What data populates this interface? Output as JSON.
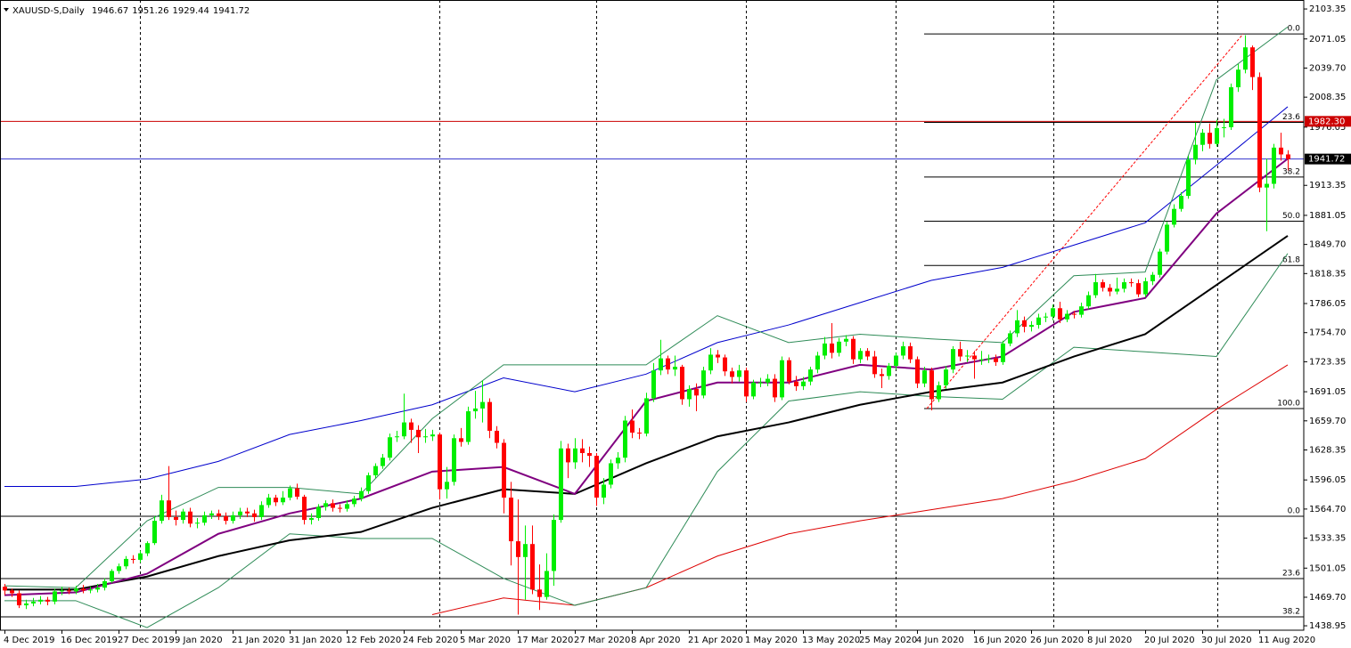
{
  "chart_data": {
    "type": "candlestick",
    "title": "XAUUSD-S,Daily",
    "up_color": "#00ee00",
    "down_color": "#ff0000",
    "ylim": [
      1434.2,
      2113.0
    ],
    "yticks": [
      2103.35,
      2071.05,
      {
        "value": 2039.7,
        "label": "2039.70"
      },
      2008.35,
      1976.05,
      1913.35,
      1881.05,
      {
        "value": 1849.7,
        "label": "1849.70"
      },
      1818.35,
      1786.05,
      {
        "value": 1754.7,
        "label": "1754.70"
      },
      1723.35,
      1691.05,
      {
        "value": 1659.7,
        "label": "1659.70"
      },
      1628.35,
      1596.05,
      {
        "value": 1564.7,
        "label": "1564.70"
      },
      1533.35,
      1501.05,
      {
        "value": 1469.7,
        "label": "1469.70"
      },
      1438.95
    ],
    "categories": [
      "4 Dec 2019",
      null,
      null,
      null,
      null,
      null,
      null,
      null,
      "16 Dec 2019",
      null,
      null,
      null,
      null,
      null,
      null,
      null,
      "27 Dec 2019",
      null,
      null,
      null,
      null,
      null,
      null,
      null,
      "9 Jan 2020",
      null,
      null,
      null,
      null,
      null,
      null,
      null,
      "21 Jan 2020",
      null,
      null,
      null,
      null,
      null,
      null,
      null,
      "31 Jan 2020",
      null,
      null,
      null,
      null,
      null,
      null,
      null,
      "12 Feb 2020",
      null,
      null,
      null,
      null,
      null,
      null,
      null,
      "24 Feb 2020",
      null,
      null,
      null,
      null,
      null,
      null,
      null,
      "5 Mar 2020",
      null,
      null,
      null,
      null,
      null,
      null,
      null,
      "17 Mar 2020",
      null,
      null,
      null,
      null,
      null,
      null,
      null,
      "27 Mar 2020",
      null,
      null,
      null,
      null,
      null,
      null,
      null,
      "8 Apr 2020",
      null,
      null,
      null,
      null,
      null,
      null,
      null,
      "21 Apr 2020",
      null,
      null,
      null,
      null,
      null,
      null,
      null,
      "1 May 2020",
      null,
      null,
      null,
      null,
      null,
      null,
      null,
      "13 May 2020",
      null,
      null,
      null,
      null,
      null,
      null,
      null,
      "25 May 2020",
      null,
      null,
      null,
      null,
      null,
      null,
      null,
      "4 Jun 2020",
      null,
      null,
      null,
      null,
      null,
      null,
      null,
      "16 Jun 2020",
      null,
      null,
      null,
      null,
      null,
      null,
      null,
      "26 Jun 2020",
      null,
      null,
      null,
      null,
      null,
      null,
      null,
      "8 Jul 2020",
      null,
      null,
      null,
      null,
      null,
      null,
      null,
      "20 Jul 2020",
      null,
      null,
      null,
      null,
      null,
      null,
      null,
      "30 Jul 2020",
      null,
      null,
      null,
      null,
      null,
      null,
      null,
      "11 Aug 2020",
      null,
      null,
      null,
      null
    ],
    "candles": {
      "open": [
        1481,
        1477,
        1474,
        1461,
        1463,
        1465,
        1467,
        1465,
        1476,
        1477,
        1476,
        1479,
        1477,
        1478,
        1480,
        1487,
        1498,
        1503,
        1511,
        1510,
        1517,
        1528,
        1552,
        1574,
        1556,
        1553,
        1562,
        1549,
        1550,
        1558,
        1560,
        1557,
        1552,
        1558,
        1562,
        1560,
        1556,
        1569,
        1577,
        1572,
        1577,
        1587,
        1578,
        1553,
        1555,
        1567,
        1571,
        1566,
        1565,
        1570,
        1576,
        1584,
        1601,
        1611,
        1620,
        1642,
        1643,
        1658,
        1650,
        1642,
        1643,
        1645,
        1586,
        1594,
        1641,
        1637,
        1670,
        1673,
        1680,
        1649,
        1636,
        1577,
        1530,
        1513,
        1527,
        1478,
        1470,
        1498,
        1553,
        1630,
        1615,
        1630,
        1625,
        1622,
        1577,
        1591,
        1614,
        1620,
        1660,
        1647,
        1646,
        1684,
        1714,
        1727,
        1715,
        1718,
        1683,
        1694,
        1687,
        1714,
        1731,
        1728,
        1713,
        1707,
        1714,
        1686,
        1701,
        1701,
        1705,
        1685,
        1725,
        1702,
        1697,
        1702,
        1715,
        1730,
        1743,
        1733,
        1745,
        1748,
        1726,
        1735,
        1729,
        1710,
        1708,
        1719,
        1730,
        1740,
        1726,
        1700,
        1714,
        1683,
        1698,
        1715,
        1737,
        1729,
        1730,
        1726,
        1726,
        1727,
        1723,
        1743,
        1754,
        1768,
        1761,
        1763,
        1771,
        1772,
        1781,
        1769,
        1775,
        1774,
        1783,
        1795,
        1809,
        1803,
        1799,
        1802,
        1809,
        1808,
        1796,
        1810,
        1817,
        1842,
        1871,
        1888,
        1902,
        1941,
        1957,
        1970,
        1958,
        1975,
        1976,
        2019,
        2038,
        2062,
        2030,
        1911,
        1915,
        1954,
        1946.67
      ],
      "high": [
        1484,
        1479,
        1477,
        1467,
        1469,
        1471,
        1470,
        1479,
        1481,
        1480,
        1482,
        1483,
        1481,
        1484,
        1490,
        1500,
        1506,
        1514,
        1515,
        1520,
        1530,
        1557,
        1580,
        1611,
        1563,
        1565,
        1566,
        1555,
        1562,
        1563,
        1564,
        1561,
        1562,
        1566,
        1566,
        1564,
        1573,
        1581,
        1580,
        1584,
        1590,
        1592,
        1580,
        1560,
        1570,
        1574,
        1575,
        1570,
        1574,
        1579,
        1588,
        1604,
        1614,
        1624,
        1646,
        1649,
        1689,
        1662,
        1655,
        1651,
        1650,
        1647,
        1610,
        1645,
        1652,
        1675,
        1692,
        1703,
        1684,
        1654,
        1640,
        1594,
        1575,
        1547,
        1547,
        1505,
        1517,
        1559,
        1638,
        1635,
        1641,
        1640,
        1632,
        1625,
        1598,
        1618,
        1626,
        1665,
        1672,
        1652,
        1690,
        1722,
        1747,
        1730,
        1730,
        1720,
        1698,
        1700,
        1718,
        1738,
        1736,
        1731,
        1717,
        1720,
        1717,
        1704,
        1706,
        1710,
        1710,
        1729,
        1728,
        1708,
        1707,
        1718,
        1734,
        1750,
        1765,
        1749,
        1752,
        1751,
        1738,
        1738,
        1735,
        1716,
        1722,
        1733,
        1745,
        1744,
        1729,
        1718,
        1717,
        1702,
        1719,
        1740,
        1745,
        1736,
        1735,
        1735,
        1731,
        1731,
        1746,
        1757,
        1779,
        1772,
        1767,
        1775,
        1776,
        1785,
        1788,
        1779,
        1778,
        1787,
        1799,
        1818,
        1812,
        1807,
        1814,
        1813,
        1813,
        1812,
        1814,
        1820,
        1845,
        1874,
        1893,
        1906,
        1945,
        1981,
        1974,
        1980,
        1984,
        1985,
        2023,
        2044,
        2075,
        2064,
        2035,
        1942,
        1958,
        1970,
        1951.26
      ],
      "low": [
        1472,
        1470,
        1458,
        1457,
        1460,
        1462,
        1461,
        1462,
        1472,
        1473,
        1473,
        1474,
        1474,
        1475,
        1477,
        1485,
        1495,
        1500,
        1506,
        1507,
        1514,
        1526,
        1549,
        1553,
        1547,
        1549,
        1545,
        1544,
        1547,
        1554,
        1553,
        1548,
        1549,
        1554,
        1556,
        1551,
        1553,
        1566,
        1568,
        1569,
        1574,
        1575,
        1548,
        1548,
        1552,
        1563,
        1562,
        1561,
        1562,
        1567,
        1573,
        1581,
        1598,
        1608,
        1617,
        1637,
        1640,
        1636,
        1625,
        1636,
        1638,
        1575,
        1576,
        1590,
        1632,
        1634,
        1662,
        1658,
        1641,
        1630,
        1560,
        1504,
        1451,
        1467,
        1473,
        1456,
        1467,
        1482,
        1550,
        1598,
        1608,
        1615,
        1610,
        1568,
        1570,
        1587,
        1608,
        1615,
        1641,
        1640,
        1643,
        1680,
        1709,
        1710,
        1708,
        1677,
        1675,
        1670,
        1684,
        1710,
        1722,
        1708,
        1700,
        1702,
        1680,
        1683,
        1696,
        1697,
        1680,
        1682,
        1699,
        1692,
        1693,
        1698,
        1711,
        1726,
        1727,
        1729,
        1740,
        1721,
        1722,
        1725,
        1706,
        1695,
        1704,
        1715,
        1726,
        1722,
        1695,
        1696,
        1671,
        1680,
        1694,
        1711,
        1724,
        1723,
        1705,
        1720,
        1722,
        1719,
        1720,
        1740,
        1750,
        1755,
        1756,
        1759,
        1766,
        1768,
        1765,
        1766,
        1770,
        1771,
        1780,
        1792,
        1799,
        1794,
        1796,
        1798,
        1804,
        1793,
        1793,
        1806,
        1814,
        1839,
        1868,
        1885,
        1899,
        1936,
        1950,
        1953,
        1955,
        1965,
        1973,
        2014,
        2034,
        2016,
        1906,
        1864,
        1910,
        1940,
        1929.44
      ],
      "close": [
        1477,
        1474,
        1461,
        1463,
        1465,
        1467,
        1465,
        1476,
        1477,
        1476,
        1479,
        1477,
        1478,
        1480,
        1487,
        1498,
        1503,
        1511,
        1510,
        1517,
        1528,
        1552,
        1574,
        1556,
        1553,
        1562,
        1549,
        1550,
        1558,
        1560,
        1557,
        1552,
        1558,
        1562,
        1560,
        1556,
        1569,
        1577,
        1572,
        1577,
        1587,
        1578,
        1553,
        1555,
        1567,
        1571,
        1566,
        1565,
        1570,
        1576,
        1584,
        1601,
        1611,
        1620,
        1642,
        1643,
        1658,
        1650,
        1642,
        1643,
        1645,
        1586,
        1594,
        1641,
        1637,
        1670,
        1673,
        1680,
        1649,
        1636,
        1577,
        1530,
        1513,
        1527,
        1478,
        1470,
        1498,
        1553,
        1630,
        1615,
        1630,
        1625,
        1622,
        1577,
        1591,
        1614,
        1620,
        1660,
        1647,
        1646,
        1684,
        1714,
        1727,
        1715,
        1718,
        1683,
        1694,
        1687,
        1714,
        1731,
        1728,
        1713,
        1707,
        1714,
        1686,
        1701,
        1701,
        1705,
        1685,
        1725,
        1702,
        1697,
        1702,
        1715,
        1730,
        1743,
        1733,
        1745,
        1748,
        1726,
        1735,
        1729,
        1710,
        1708,
        1719,
        1730,
        1740,
        1726,
        1700,
        1714,
        1683,
        1698,
        1715,
        1737,
        1729,
        1730,
        1726,
        1726,
        1727,
        1723,
        1743,
        1754,
        1768,
        1761,
        1763,
        1771,
        1772,
        1781,
        1769,
        1775,
        1774,
        1783,
        1795,
        1809,
        1803,
        1799,
        1802,
        1809,
        1808,
        1796,
        1810,
        1817,
        1842,
        1871,
        1888,
        1902,
        1941,
        1957,
        1970,
        1958,
        1975,
        1976,
        2019,
        2038,
        2062,
        2030,
        1911,
        1915,
        1954,
        1946.67,
        1941.72
      ]
    },
    "overlay_x": [
      0,
      10,
      20,
      30,
      40,
      50,
      60,
      70,
      80,
      90,
      100,
      110,
      120,
      130,
      140,
      150,
      160,
      170,
      180
    ],
    "overlays": [
      {
        "color": "#0000cc",
        "width": 1,
        "values": [
          1589,
          1589,
          1597,
          1616,
          1645,
          1660,
          1677,
          1706,
          1691,
          1710,
          1744,
          1763,
          1787,
          1811,
          1825,
          1849,
          1873,
          1935,
          1998
        ]
      },
      {
        "color": "#dd0000",
        "width": 1,
        "values": [
          null,
          null,
          null,
          null,
          null,
          null,
          1451,
          1469,
          1461,
          1480,
          1514,
          1538,
          1552,
          1564,
          1576,
          1595,
          1619,
          1672,
          1720
        ]
      },
      {
        "color": "#2e8b57",
        "width": 1,
        "values": [
          1482,
          1480,
          1552,
          1588,
          1588,
          1581,
          1662,
          1720,
          1720,
          1720,
          1773,
          1744,
          1753,
          1748,
          1744,
          1816,
          1820,
          2027,
          2084
        ]
      },
      {
        "color": "#2e8b57",
        "width": 1,
        "values": [
          1466,
          1466,
          1437,
          1480,
          1538,
          1533,
          1533,
          1490,
          1461,
          1480,
          1605,
          1681,
          1691,
          1686,
          1683,
          1739,
          1734,
          1729,
          1840
        ]
      },
      {
        "color": "#000000",
        "width": 2,
        "values": [
          1478,
          1478,
          1492,
          1514,
          1531,
          1540,
          1566,
          1586,
          1581,
          1614,
          1643,
          1658,
          1677,
          1691,
          1701,
          1729,
          1753,
          1806,
          1859
        ]
      },
      {
        "color": "#800080",
        "width": 2,
        "values": [
          1472,
          1475,
          1495,
          1538,
          1560,
          1576,
          1605,
          1610,
          1581,
          1681,
          1701,
          1701,
          1720,
          1715,
          1729,
          1777,
          1792,
          1883,
          1942
        ]
      }
    ],
    "fibs": [
      {
        "levels": [
          {
            "label": "0.0",
            "price": 2076.5
          },
          {
            "label": "23.6",
            "price": 1981.2
          },
          {
            "label": "38.2",
            "price": 1922.3
          },
          {
            "label": "50.0",
            "price": 1874.7
          },
          {
            "label": "61.8",
            "price": 1827.1
          },
          {
            "label": "100.0",
            "price": 1672.9
          }
        ]
      },
      {
        "levels": [
          {
            "label": "0.0",
            "price": 1556.9
          },
          {
            "label": "23.6",
            "price": 1489.8
          },
          {
            "label": "38.2",
            "price": 1448.6
          }
        ]
      }
    ],
    "alert_line": {
      "value": 1982.3,
      "label": "1982.30",
      "color": "#cc0000"
    },
    "bid_color": "#3333cc"
  }
}
